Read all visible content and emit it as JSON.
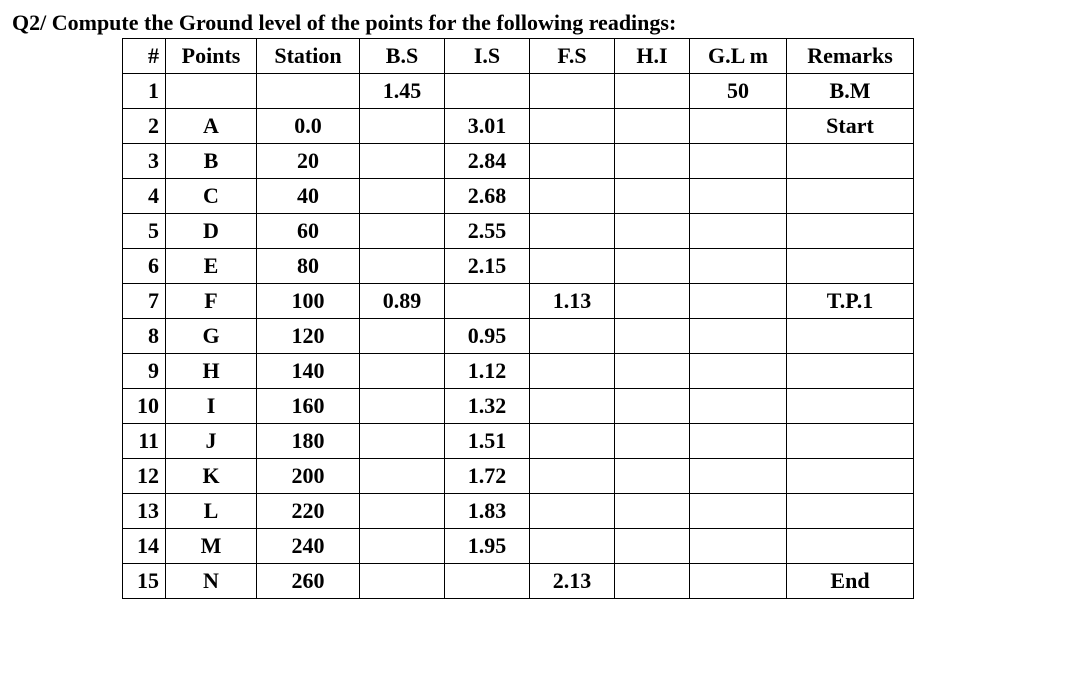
{
  "title": "Q2/ Compute the Ground level of the points for the following readings:",
  "table": {
    "columns": [
      "#",
      "Points",
      "Station",
      "B.S",
      "I.S",
      "F.S",
      "H.I",
      "G.L m",
      "Remarks"
    ],
    "rows": [
      {
        "num": "1",
        "points": "",
        "station": "",
        "bs": "1.45",
        "is": "",
        "fs": "",
        "hi": "",
        "gl": "50",
        "rem": "B.M"
      },
      {
        "num": "2",
        "points": "A",
        "station": "0.0",
        "bs": "",
        "is": "3.01",
        "fs": "",
        "hi": "",
        "gl": "",
        "rem": "Start"
      },
      {
        "num": "3",
        "points": "B",
        "station": "20",
        "bs": "",
        "is": "2.84",
        "fs": "",
        "hi": "",
        "gl": "",
        "rem": ""
      },
      {
        "num": "4",
        "points": "C",
        "station": "40",
        "bs": "",
        "is": "2.68",
        "fs": "",
        "hi": "",
        "gl": "",
        "rem": ""
      },
      {
        "num": "5",
        "points": "D",
        "station": "60",
        "bs": "",
        "is": "2.55",
        "fs": "",
        "hi": "",
        "gl": "",
        "rem": ""
      },
      {
        "num": "6",
        "points": "E",
        "station": "80",
        "bs": "",
        "is": "2.15",
        "fs": "",
        "hi": "",
        "gl": "",
        "rem": ""
      },
      {
        "num": "7",
        "points": "F",
        "station": "100",
        "bs": "0.89",
        "is": "",
        "fs": "1.13",
        "hi": "",
        "gl": "",
        "rem": "T.P.1"
      },
      {
        "num": "8",
        "points": "G",
        "station": "120",
        "bs": "",
        "is": "0.95",
        "fs": "",
        "hi": "",
        "gl": "",
        "rem": ""
      },
      {
        "num": "9",
        "points": "H",
        "station": "140",
        "bs": "",
        "is": "1.12",
        "fs": "",
        "hi": "",
        "gl": "",
        "rem": ""
      },
      {
        "num": "10",
        "points": "I",
        "station": "160",
        "bs": "",
        "is": "1.32",
        "fs": "",
        "hi": "",
        "gl": "",
        "rem": ""
      },
      {
        "num": "11",
        "points": "J",
        "station": "180",
        "bs": "",
        "is": "1.51",
        "fs": "",
        "hi": "",
        "gl": "",
        "rem": ""
      },
      {
        "num": "12",
        "points": "K",
        "station": "200",
        "bs": "",
        "is": "1.72",
        "fs": "",
        "hi": "",
        "gl": "",
        "rem": ""
      },
      {
        "num": "13",
        "points": "L",
        "station": "220",
        "bs": "",
        "is": "1.83",
        "fs": "",
        "hi": "",
        "gl": "",
        "rem": ""
      },
      {
        "num": "14",
        "points": "M",
        "station": "240",
        "bs": "",
        "is": "1.95",
        "fs": "",
        "hi": "",
        "gl": "",
        "rem": ""
      },
      {
        "num": "15",
        "points": "N",
        "station": "260",
        "bs": "",
        "is": "",
        "fs": "2.13",
        "hi": "",
        "gl": "",
        "rem": "End"
      }
    ]
  }
}
